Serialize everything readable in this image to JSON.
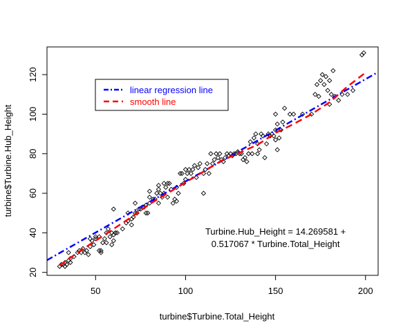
{
  "chart_data": {
    "type": "scatter",
    "title": "",
    "xlabel": "turbine$Turbine.Total_Height",
    "ylabel": "turbine$Turbine.Hub_Height",
    "xlim": [
      23,
      207
    ],
    "ylim": [
      18.5,
      134
    ],
    "xticks": [
      50,
      100,
      150,
      200
    ],
    "yticks": [
      20,
      40,
      60,
      80,
      100,
      120
    ],
    "grid": false,
    "legend_position": "top-left",
    "legend": [
      {
        "label": "linear regression line",
        "color": "#0000FF",
        "style": "dashdot"
      },
      {
        "label": "smooth line",
        "color": "#FF0000",
        "style": "dashed"
      }
    ],
    "annotation": {
      "line1": "Turbine.Hub_Height = 14.269581 +",
      "line2": "0.517067 * Turbine.Total_Height",
      "at": [
        150,
        38
      ]
    },
    "regression": {
      "intercept": 14.269581,
      "slope": 0.517067,
      "x_range": [
        23,
        207
      ]
    },
    "smooth": {
      "x": [
        30,
        40,
        50,
        60,
        70,
        80,
        90,
        100,
        110,
        120,
        130,
        140,
        150,
        160,
        170,
        180,
        190,
        200
      ],
      "y": [
        23.5,
        30,
        36,
        42,
        48,
        54.5,
        60,
        65.5,
        71,
        76.5,
        80.5,
        84.5,
        90.5,
        95,
        100,
        106,
        114,
        121
      ]
    },
    "series": [
      {
        "values": [
          [
            30,
            23
          ],
          [
            31,
            24
          ],
          [
            32,
            24
          ],
          [
            33,
            25
          ],
          [
            33,
            23
          ],
          [
            34,
            24
          ],
          [
            35,
            26
          ],
          [
            36,
            27
          ],
          [
            36,
            25
          ],
          [
            35,
            30
          ],
          [
            38,
            28
          ],
          [
            40,
            30
          ],
          [
            41,
            31
          ],
          [
            42,
            30
          ],
          [
            43,
            32
          ],
          [
            44,
            30
          ],
          [
            45,
            31
          ],
          [
            46,
            29
          ],
          [
            47,
            33
          ],
          [
            47,
            37
          ],
          [
            48,
            36
          ],
          [
            49,
            34
          ],
          [
            50,
            37
          ],
          [
            50,
            38
          ],
          [
            52,
            31
          ],
          [
            52,
            38
          ],
          [
            53,
            31
          ],
          [
            53,
            30
          ],
          [
            54,
            35
          ],
          [
            55,
            37
          ],
          [
            56,
            40
          ],
          [
            56,
            35
          ],
          [
            57,
            42
          ],
          [
            58,
            38
          ],
          [
            59,
            34
          ],
          [
            59,
            40
          ],
          [
            60,
            36
          ],
          [
            60,
            39
          ],
          [
            61,
            40
          ],
          [
            61,
            40
          ],
          [
            62,
            40
          ],
          [
            60,
            52
          ],
          [
            65,
            42
          ],
          [
            67,
            45
          ],
          [
            68,
            46
          ],
          [
            68,
            50
          ],
          [
            70,
            44
          ],
          [
            70,
            47
          ],
          [
            71,
            48
          ],
          [
            72,
            50
          ],
          [
            72,
            55
          ],
          [
            73,
            50
          ],
          [
            74,
            52
          ],
          [
            75,
            52
          ],
          [
            76,
            53
          ],
          [
            77,
            53
          ],
          [
            78,
            54
          ],
          [
            78,
            50
          ],
          [
            79,
            50
          ],
          [
            80,
            55
          ],
          [
            80,
            58
          ],
          [
            80,
            61
          ],
          [
            82,
            57
          ],
          [
            83,
            57
          ],
          [
            84,
            60
          ],
          [
            85,
            55
          ],
          [
            85,
            62
          ],
          [
            85,
            64
          ],
          [
            86,
            60
          ],
          [
            87,
            58
          ],
          [
            88,
            60
          ],
          [
            88,
            65
          ],
          [
            89,
            63
          ],
          [
            90,
            65
          ],
          [
            90,
            58
          ],
          [
            91,
            65
          ],
          [
            92,
            62
          ],
          [
            93,
            55
          ],
          [
            94,
            57
          ],
          [
            95,
            63
          ],
          [
            95,
            56
          ],
          [
            96,
            60
          ],
          [
            97,
            70
          ],
          [
            98,
            70
          ],
          [
            99,
            65
          ],
          [
            100,
            72
          ],
          [
            100,
            67
          ],
          [
            101,
            70
          ],
          [
            102,
            72
          ],
          [
            103,
            70
          ],
          [
            104,
            72
          ],
          [
            105,
            74
          ],
          [
            106,
            68
          ],
          [
            107,
            73
          ],
          [
            108,
            75
          ],
          [
            110,
            60
          ],
          [
            110,
            70
          ],
          [
            111,
            72
          ],
          [
            112,
            75
          ],
          [
            113,
            70
          ],
          [
            114,
            80
          ],
          [
            115,
            75
          ],
          [
            116,
            77
          ],
          [
            117,
            80
          ],
          [
            118,
            78
          ],
          [
            119,
            80
          ],
          [
            120,
            77
          ],
          [
            121,
            76
          ],
          [
            122,
            78
          ],
          [
            123,
            80
          ],
          [
            124,
            79
          ],
          [
            125,
            80
          ],
          [
            126,
            79
          ],
          [
            127,
            80
          ],
          [
            128,
            80
          ],
          [
            129,
            81
          ],
          [
            130,
            80
          ],
          [
            131,
            80
          ],
          [
            132,
            77
          ],
          [
            133,
            78
          ],
          [
            134,
            76
          ],
          [
            135,
            80
          ],
          [
            136,
            86
          ],
          [
            137,
            80
          ],
          [
            138,
            88
          ],
          [
            139,
            90
          ],
          [
            140,
            80
          ],
          [
            140,
            85
          ],
          [
            141,
            82
          ],
          [
            142,
            90
          ],
          [
            143,
            89
          ],
          [
            144,
            78
          ],
          [
            145,
            85
          ],
          [
            146,
            90
          ],
          [
            147,
            89
          ],
          [
            148,
            90
          ],
          [
            149,
            89
          ],
          [
            150,
            92
          ],
          [
            150,
            87
          ],
          [
            150,
            100
          ],
          [
            151,
            95
          ],
          [
            151,
            82
          ],
          [
            152,
            88
          ],
          [
            153,
            92
          ],
          [
            154,
            96
          ],
          [
            155,
            103
          ],
          [
            158,
            100
          ],
          [
            160,
            100
          ],
          [
            165,
            100
          ],
          [
            170,
            100
          ],
          [
            172,
            110
          ],
          [
            173,
            115
          ],
          [
            174,
            109
          ],
          [
            175,
            117
          ],
          [
            176,
            120
          ],
          [
            177,
            115
          ],
          [
            178,
            119
          ],
          [
            179,
            112
          ],
          [
            180,
            117
          ],
          [
            180,
            105
          ],
          [
            181,
            110
          ],
          [
            182,
            122
          ],
          [
            183,
            109
          ],
          [
            185,
            107
          ],
          [
            187,
            110
          ],
          [
            190,
            110
          ],
          [
            193,
            112
          ],
          [
            198,
            130
          ],
          [
            199,
            131
          ]
        ]
      }
    ]
  }
}
